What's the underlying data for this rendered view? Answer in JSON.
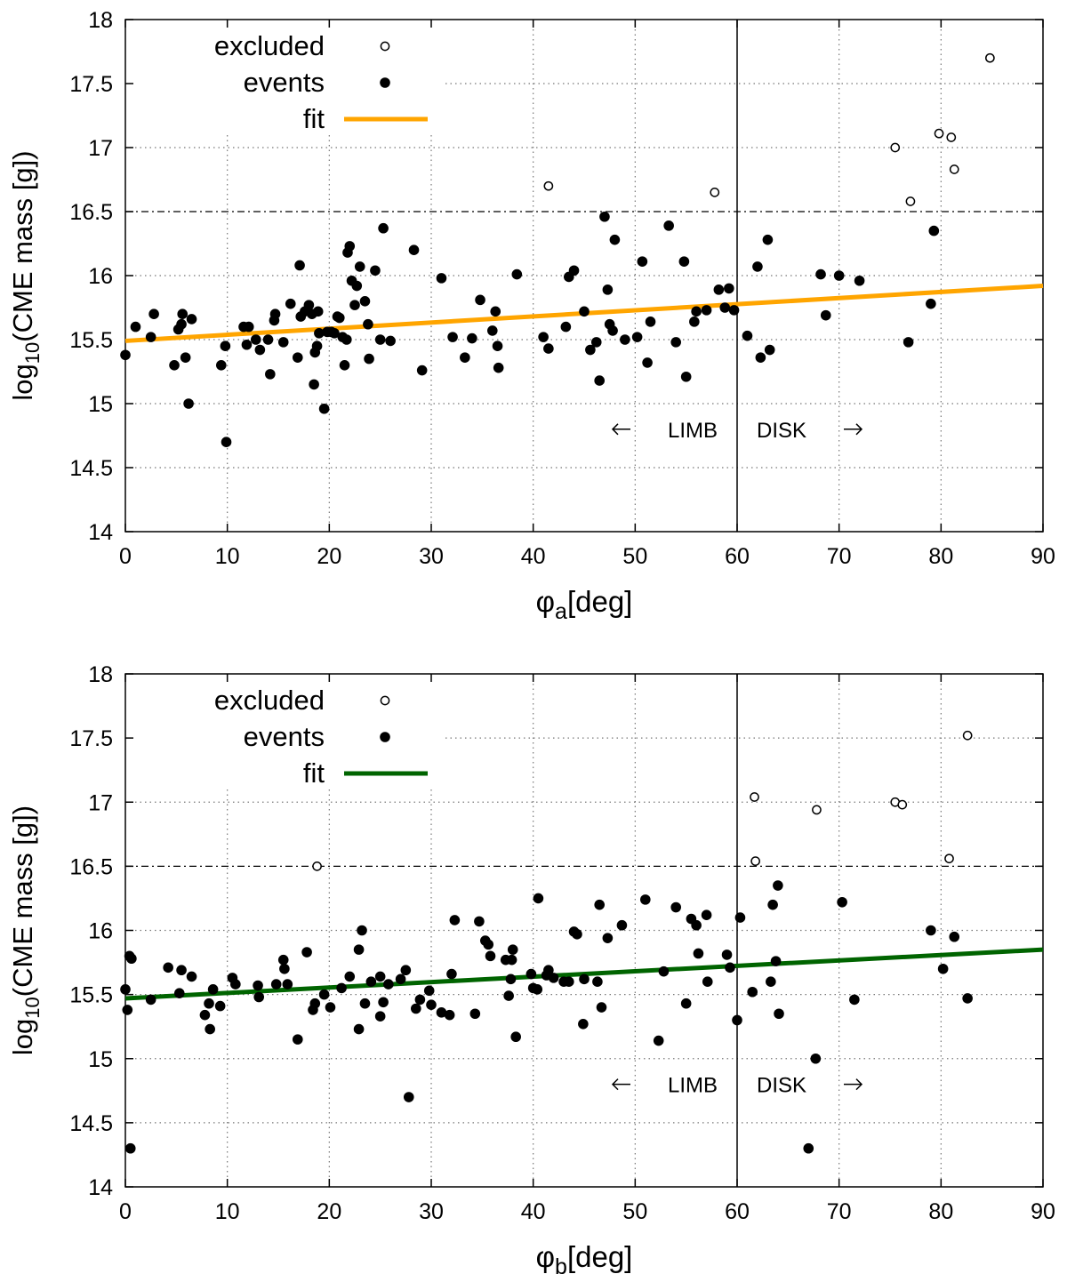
{
  "chart_data": [
    {
      "type": "scatter",
      "xlabel_main": "φ",
      "xlabel_sub": "a",
      "xlabel_unit": "[deg]",
      "ylabel_pre": "log",
      "ylabel_sub": "10",
      "ylabel_post": "(CME mass [g])",
      "xlim": [
        0,
        90
      ],
      "ylim": [
        14,
        18
      ],
      "xticks": [
        0,
        10,
        20,
        30,
        40,
        50,
        60,
        70,
        80,
        90
      ],
      "yticks": [
        14,
        14.5,
        15,
        15.5,
        16,
        16.5,
        17,
        17.5,
        18
      ],
      "grid": true,
      "legend_position": "top-left",
      "legend": {
        "excluded": "excluded",
        "events": "events",
        "fit": "fit"
      },
      "fit_color": "#ffa500",
      "fit": {
        "x0": 0,
        "y0": 15.49,
        "x1": 90,
        "y1": 15.92
      },
      "threshold_y": 16.5,
      "divider_x": 60,
      "annotations": {
        "limb": "LIMB",
        "disk": "DISK"
      },
      "excluded": [
        [
          41.5,
          16.7
        ],
        [
          57.8,
          16.65
        ],
        [
          75.5,
          17.0
        ],
        [
          77.0,
          16.58
        ],
        [
          79.8,
          17.11
        ],
        [
          81.0,
          17.08
        ],
        [
          81.3,
          16.83
        ],
        [
          84.8,
          17.7
        ]
      ],
      "events": [
        [
          0,
          15.38
        ],
        [
          1,
          15.6
        ],
        [
          2.5,
          15.52
        ],
        [
          2.8,
          15.7
        ],
        [
          4.8,
          15.3
        ],
        [
          5.2,
          15.58
        ],
        [
          5.5,
          15.62
        ],
        [
          5.6,
          15.7
        ],
        [
          5.9,
          15.36
        ],
        [
          6.2,
          15.0
        ],
        [
          6.5,
          15.66
        ],
        [
          9.4,
          15.3
        ],
        [
          9.8,
          15.45
        ],
        [
          9.9,
          14.7
        ],
        [
          11.6,
          15.6
        ],
        [
          11.9,
          15.46
        ],
        [
          12.1,
          15.6
        ],
        [
          12.8,
          15.5
        ],
        [
          13.2,
          15.42
        ],
        [
          14.0,
          15.5
        ],
        [
          14.2,
          15.23
        ],
        [
          14.6,
          15.65
        ],
        [
          14.7,
          15.7
        ],
        [
          15.5,
          15.48
        ],
        [
          16.2,
          15.78
        ],
        [
          16.9,
          15.36
        ],
        [
          17.1,
          16.08
        ],
        [
          17.2,
          15.68
        ],
        [
          17.6,
          15.72
        ],
        [
          18.0,
          15.77
        ],
        [
          18.3,
          15.7
        ],
        [
          18.5,
          15.15
        ],
        [
          18.6,
          15.4
        ],
        [
          18.8,
          15.45
        ],
        [
          18.9,
          15.72
        ],
        [
          19.0,
          15.55
        ],
        [
          19.5,
          14.96
        ],
        [
          19.8,
          15.56
        ],
        [
          20.2,
          15.56
        ],
        [
          20.5,
          15.55
        ],
        [
          20.8,
          15.68
        ],
        [
          21.0,
          15.67
        ],
        [
          21.3,
          15.52
        ],
        [
          21.5,
          15.3
        ],
        [
          21.7,
          15.5
        ],
        [
          21.8,
          16.18
        ],
        [
          22.0,
          16.23
        ],
        [
          22.2,
          15.96
        ],
        [
          22.5,
          15.77
        ],
        [
          22.7,
          15.92
        ],
        [
          23.0,
          16.07
        ],
        [
          23.5,
          15.8
        ],
        [
          23.8,
          15.62
        ],
        [
          23.9,
          15.35
        ],
        [
          24.5,
          16.04
        ],
        [
          25.0,
          15.5
        ],
        [
          25.3,
          16.37
        ],
        [
          26.0,
          15.49
        ],
        [
          28.3,
          16.2
        ],
        [
          29.1,
          15.26
        ],
        [
          31.0,
          15.98
        ],
        [
          32.1,
          15.52
        ],
        [
          33.3,
          15.36
        ],
        [
          34.0,
          15.51
        ],
        [
          34.8,
          15.81
        ],
        [
          36.0,
          15.57
        ],
        [
          36.3,
          15.72
        ],
        [
          36.5,
          15.45
        ],
        [
          36.6,
          15.28
        ],
        [
          38.4,
          16.01
        ],
        [
          41.0,
          15.52
        ],
        [
          41.5,
          15.43
        ],
        [
          43.2,
          15.6
        ],
        [
          43.5,
          15.99
        ],
        [
          44.0,
          16.04
        ],
        [
          45.0,
          15.72
        ],
        [
          45.6,
          15.42
        ],
        [
          46.2,
          15.48
        ],
        [
          46.5,
          15.18
        ],
        [
          47.0,
          16.46
        ],
        [
          47.3,
          15.89
        ],
        [
          47.5,
          15.62
        ],
        [
          47.8,
          15.57
        ],
        [
          48.0,
          16.28
        ],
        [
          49.0,
          15.5
        ],
        [
          50.2,
          15.52
        ],
        [
          50.7,
          16.11
        ],
        [
          51.2,
          15.32
        ],
        [
          51.5,
          15.64
        ],
        [
          53.3,
          16.39
        ],
        [
          54.0,
          15.48
        ],
        [
          54.8,
          16.11
        ],
        [
          55.0,
          15.21
        ],
        [
          55.8,
          15.64
        ],
        [
          56.0,
          15.72
        ],
        [
          57.0,
          15.73
        ],
        [
          58.2,
          15.89
        ],
        [
          58.8,
          15.75
        ],
        [
          59.2,
          15.9
        ],
        [
          59.7,
          15.73
        ],
        [
          61.0,
          15.53
        ],
        [
          62.0,
          16.07
        ],
        [
          62.3,
          15.36
        ],
        [
          63.0,
          16.28
        ],
        [
          63.2,
          15.42
        ],
        [
          68.2,
          16.01
        ],
        [
          68.7,
          15.69
        ],
        [
          70.0,
          16.0
        ],
        [
          72.0,
          15.96
        ],
        [
          76.8,
          15.48
        ],
        [
          79.0,
          15.78
        ],
        [
          79.3,
          16.35
        ]
      ]
    },
    {
      "type": "scatter",
      "xlabel_main": "φ",
      "xlabel_sub": "b",
      "xlabel_unit": "[deg]",
      "ylabel_pre": "log",
      "ylabel_sub": "10",
      "ylabel_post": "(CME mass [g])",
      "xlim": [
        0,
        90
      ],
      "ylim": [
        14,
        18
      ],
      "xticks": [
        0,
        10,
        20,
        30,
        40,
        50,
        60,
        70,
        80,
        90
      ],
      "yticks": [
        14,
        14.5,
        15,
        15.5,
        16,
        16.5,
        17,
        17.5,
        18
      ],
      "grid": true,
      "legend_position": "top-left",
      "legend": {
        "excluded": "excluded",
        "events": "events",
        "fit": "fit"
      },
      "fit_color": "#006400",
      "fit": {
        "x0": 0,
        "y0": 15.47,
        "x1": 90,
        "y1": 15.85
      },
      "threshold_y": 16.5,
      "divider_x": 60,
      "annotations": {
        "limb": "LIMB",
        "disk": "DISK"
      },
      "excluded": [
        [
          18.8,
          16.5
        ],
        [
          61.7,
          17.04
        ],
        [
          61.8,
          16.54
        ],
        [
          67.8,
          16.94
        ],
        [
          75.5,
          17.0
        ],
        [
          76.2,
          16.98
        ],
        [
          80.8,
          16.56
        ],
        [
          82.6,
          17.52
        ]
      ],
      "events": [
        [
          0,
          15.54
        ],
        [
          0.2,
          15.38
        ],
        [
          0.4,
          15.8
        ],
        [
          0.5,
          14.3
        ],
        [
          0.6,
          15.78
        ],
        [
          2.5,
          15.46
        ],
        [
          4.2,
          15.71
        ],
        [
          5.3,
          15.51
        ],
        [
          5.5,
          15.69
        ],
        [
          6.5,
          15.64
        ],
        [
          7.8,
          15.34
        ],
        [
          8.2,
          15.43
        ],
        [
          8.3,
          15.23
        ],
        [
          8.6,
          15.54
        ],
        [
          9.3,
          15.41
        ],
        [
          10.5,
          15.63
        ],
        [
          10.8,
          15.58
        ],
        [
          13.0,
          15.57
        ],
        [
          13.1,
          15.48
        ],
        [
          14.8,
          15.58
        ],
        [
          15.5,
          15.77
        ],
        [
          15.6,
          15.7
        ],
        [
          15.9,
          15.58
        ],
        [
          16.9,
          15.15
        ],
        [
          17.8,
          15.83
        ],
        [
          18.4,
          15.38
        ],
        [
          18.6,
          15.43
        ],
        [
          19.5,
          15.5
        ],
        [
          20.1,
          15.4
        ],
        [
          21.2,
          15.55
        ],
        [
          22.0,
          15.64
        ],
        [
          22.9,
          15.85
        ],
        [
          22.9,
          15.23
        ],
        [
          23.2,
          16.0
        ],
        [
          23.5,
          15.43
        ],
        [
          24.1,
          15.6
        ],
        [
          25.0,
          15.33
        ],
        [
          25.0,
          15.64
        ],
        [
          25.3,
          15.44
        ],
        [
          25.8,
          15.58
        ],
        [
          27.0,
          15.62
        ],
        [
          27.5,
          15.69
        ],
        [
          27.8,
          14.7
        ],
        [
          28.5,
          15.39
        ],
        [
          28.9,
          15.46
        ],
        [
          29.8,
          15.53
        ],
        [
          30.0,
          15.42
        ],
        [
          31.0,
          15.36
        ],
        [
          31.8,
          15.34
        ],
        [
          32.0,
          15.66
        ],
        [
          32.3,
          16.08
        ],
        [
          34.3,
          15.35
        ],
        [
          34.7,
          16.07
        ],
        [
          35.3,
          15.92
        ],
        [
          35.6,
          15.89
        ],
        [
          35.8,
          15.8
        ],
        [
          37.3,
          15.77
        ],
        [
          37.6,
          15.49
        ],
        [
          37.8,
          15.62
        ],
        [
          37.9,
          15.77
        ],
        [
          38.0,
          15.85
        ],
        [
          38.3,
          15.17
        ],
        [
          39.8,
          15.66
        ],
        [
          40.0,
          15.55
        ],
        [
          40.4,
          15.54
        ],
        [
          40.5,
          16.25
        ],
        [
          41.3,
          15.65
        ],
        [
          41.5,
          15.69
        ],
        [
          42.0,
          15.63
        ],
        [
          43.0,
          15.6
        ],
        [
          43.5,
          15.6
        ],
        [
          44.0,
          15.99
        ],
        [
          44.3,
          15.97
        ],
        [
          44.9,
          15.27
        ],
        [
          45.0,
          15.62
        ],
        [
          46.3,
          15.6
        ],
        [
          46.5,
          16.2
        ],
        [
          46.7,
          15.4
        ],
        [
          47.3,
          15.94
        ],
        [
          48.7,
          16.04
        ],
        [
          51.0,
          16.24
        ],
        [
          52.3,
          15.14
        ],
        [
          52.8,
          15.68
        ],
        [
          54.0,
          16.18
        ],
        [
          55.0,
          15.43
        ],
        [
          55.5,
          16.09
        ],
        [
          56.0,
          16.04
        ],
        [
          56.2,
          15.82
        ],
        [
          57.0,
          16.12
        ],
        [
          57.1,
          15.6
        ],
        [
          59.0,
          15.81
        ],
        [
          59.3,
          15.71
        ],
        [
          60.0,
          15.3
        ],
        [
          60.3,
          16.1
        ],
        [
          61.5,
          15.52
        ],
        [
          63.3,
          15.6
        ],
        [
          63.5,
          16.2
        ],
        [
          63.8,
          15.76
        ],
        [
          64.0,
          16.35
        ],
        [
          64.1,
          15.35
        ],
        [
          67.0,
          14.3
        ],
        [
          67.7,
          15.0
        ],
        [
          70.3,
          16.22
        ],
        [
          71.5,
          15.46
        ],
        [
          79.0,
          16.0
        ],
        [
          80.2,
          15.7
        ],
        [
          81.3,
          15.95
        ],
        [
          82.6,
          15.47
        ]
      ]
    }
  ]
}
